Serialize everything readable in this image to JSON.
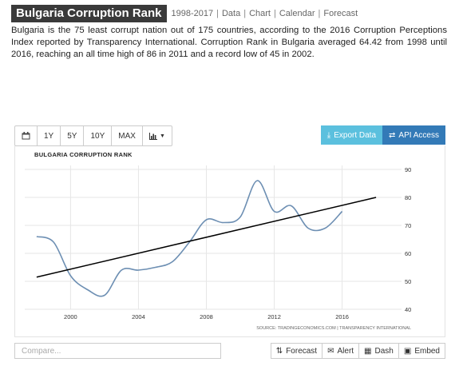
{
  "header": {
    "title": "Bulgaria Corruption Rank",
    "range": "1998-2017",
    "links": [
      "Data",
      "Chart",
      "Calendar",
      "Forecast"
    ]
  },
  "description": "Bulgaria is the 75 least corrupt nation out of 175 countries, according to the 2016 Corruption Perceptions Index reported by Transparency International. Corruption Rank in Bulgaria averaged 64.42 from 1998 until 2016, reaching an all time high of 86 in 2011 and a record low of 45 in 2002.",
  "toolbar": {
    "calendar_icon": "calendar-icon",
    "ranges": [
      "1Y",
      "5Y",
      "10Y",
      "MAX"
    ],
    "chart_type_icon": "bar-chart-icon",
    "export_label": "Export Data",
    "api_label": "API Access",
    "accent_export": "#5bc0de",
    "accent_api": "#337ab7"
  },
  "chart_data": {
    "type": "line",
    "title": "BULGARIA CORRUPTION RANK",
    "source": "SOURCE: TRADINGECONOMICS.COM | TRANSPARENCY INTERNATIONAL",
    "x": [
      1998,
      1999,
      2000,
      2001,
      2002,
      2003,
      2004,
      2005,
      2006,
      2007,
      2008,
      2009,
      2010,
      2011,
      2012,
      2013,
      2014,
      2015,
      2016
    ],
    "series": [
      {
        "values": [
          66,
          64,
          52,
          47,
          45,
          54,
          54,
          55,
          57,
          64,
          72,
          71,
          73,
          86,
          75,
          77,
          69,
          69,
          75
        ],
        "color": "#6d8fb3"
      }
    ],
    "trend": {
      "x": [
        1998,
        2018
      ],
      "values": [
        51.5,
        80
      ],
      "color": "#000000"
    },
    "xticks": [
      "2000",
      "2004",
      "2008",
      "2012",
      "2016"
    ],
    "yticks": [
      "40",
      "50",
      "60",
      "70",
      "80",
      "90"
    ],
    "xlim": [
      1997.3,
      2019.5
    ],
    "ylim": [
      40,
      90
    ],
    "grid": true,
    "yaxis_side": "right"
  },
  "bottom": {
    "compare_placeholder": "Compare...",
    "buttons": [
      {
        "icon": "sort-icon",
        "glyph": "⇅",
        "label": "Forecast"
      },
      {
        "icon": "alert-icon",
        "glyph": "✉",
        "label": "Alert"
      },
      {
        "icon": "dashboard-icon",
        "glyph": "▦",
        "label": "Dash"
      },
      {
        "icon": "image-icon",
        "glyph": "▣",
        "label": "Embed"
      }
    ]
  }
}
